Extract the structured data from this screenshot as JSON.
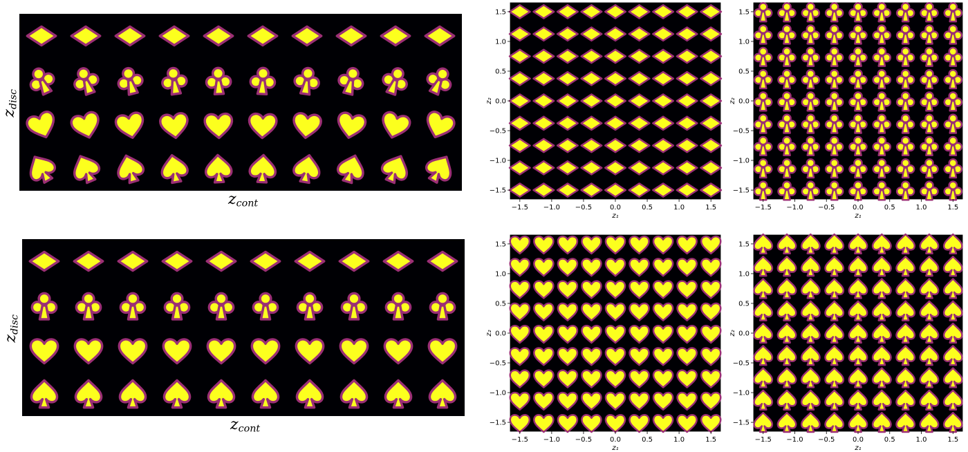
{
  "colors": {
    "background": "#000004",
    "shape_edge": "#9b2f74",
    "shape_fill": "#fcff1e"
  },
  "panels": [
    {
      "id": "top-left",
      "kind": "strip",
      "ylabel": {
        "main": "z",
        "sub": "disc"
      },
      "xlabel": {
        "main": "z",
        "sub": "cont"
      },
      "rows": [
        "diamond",
        "club",
        "heart",
        "spade"
      ],
      "columns": 10
    },
    {
      "id": "bottom-left",
      "kind": "strip",
      "ylabel": {
        "main": "z",
        "sub": "disc"
      },
      "xlabel": {
        "main": "z",
        "sub": "cont"
      },
      "rows": [
        "diamond",
        "club",
        "heart",
        "spade"
      ],
      "columns": 10
    },
    {
      "id": "top-mid",
      "kind": "grid",
      "xlabel": "z₁",
      "ylabel": "z₂",
      "shape": "diamond"
    },
    {
      "id": "top-right",
      "kind": "grid",
      "xlabel": "z₁",
      "ylabel": "z₂",
      "shape": "club"
    },
    {
      "id": "bottom-mid",
      "kind": "grid",
      "xlabel": "z₁",
      "ylabel": "z₂",
      "shape": "heart"
    },
    {
      "id": "bottom-right",
      "kind": "grid",
      "xlabel": "z₁",
      "ylabel": "z₂",
      "shape": "spade"
    }
  ],
  "grid_axes": {
    "xticks": [
      "−1.5",
      "−1.0",
      "−0.5",
      "0.0",
      "0.5",
      "1.0",
      "1.5"
    ],
    "yticks": [
      "1.5",
      "1.0",
      "0.5",
      "0.0",
      "−0.5",
      "−1.0",
      "−1.5"
    ],
    "xlim": [
      -1.65,
      1.65
    ],
    "ylim": [
      -1.65,
      1.65
    ],
    "grid_points_per_axis": 9
  }
}
